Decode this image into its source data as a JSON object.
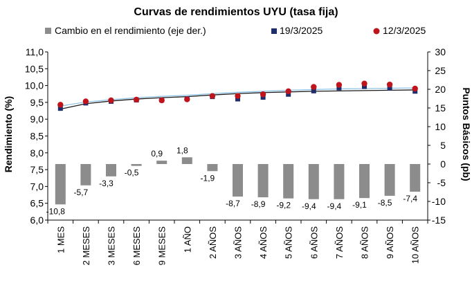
{
  "chart_data": {
    "type": "bar+line",
    "title": "Curvas de rendimientos UYU (tasa fija)",
    "categories": [
      "1 MES",
      "2 MESES",
      "3 MESES",
      "6 MESES",
      "9 MESES",
      "1 AÑO",
      "2 AÑOS",
      "3 AÑOS",
      "4 AÑOS",
      "5 AÑOS",
      "6 AÑOS",
      "7 AÑOS",
      "8 AÑOS",
      "9 AÑOS",
      "10 AÑOS"
    ],
    "y_left": {
      "label": "Rendimiento (%)",
      "range": [
        6.0,
        11.0
      ],
      "ticks": [
        "6,0",
        "6,5",
        "7,0",
        "7,5",
        "8,0",
        "8,5",
        "9,0",
        "9,5",
        "10,0",
        "10,5",
        "11,0"
      ]
    },
    "y_right": {
      "label": "Puntos Básicos (pb)",
      "range": [
        -15,
        30
      ],
      "ticks": [
        "-15",
        "-10",
        "-5",
        "0",
        "5",
        "10",
        "15",
        "20",
        "25",
        "30"
      ]
    },
    "series": [
      {
        "name": "Cambio en el rendimiento (eje der.)",
        "kind": "bar",
        "axis": "right",
        "color": "#8c8c8c",
        "values": [
          -10.8,
          -5.7,
          -3.3,
          -0.5,
          0.9,
          1.8,
          -1.9,
          -8.7,
          -8.9,
          -9.2,
          -9.4,
          -9.4,
          -9.1,
          -8.5,
          -7.4
        ],
        "labels": [
          "-10,8",
          "-5,7",
          "-3,3",
          "-0,5",
          "0,9",
          "1,8",
          "-1,9",
          "-8,7",
          "-8,9",
          "-9,2",
          "-9,4",
          "-9,4",
          "-9,1",
          "-8,5",
          "-7,4"
        ]
      },
      {
        "name": "19/3/2025",
        "kind": "scatter",
        "axis": "left",
        "color": "#1f2d6b",
        "values": [
          9.32,
          9.48,
          9.53,
          9.57,
          9.57,
          9.61,
          9.67,
          9.6,
          9.65,
          9.74,
          9.84,
          9.93,
          9.97,
          9.92,
          9.83
        ]
      },
      {
        "name": "12/3/2025",
        "kind": "scatter",
        "axis": "left",
        "color": "#c0141c",
        "values": [
          9.43,
          9.53,
          9.56,
          9.58,
          9.56,
          9.59,
          9.69,
          9.69,
          9.74,
          9.83,
          9.96,
          10.02,
          10.06,
          10.03,
          9.91
        ]
      }
    ],
    "fit_lines": [
      {
        "color": "#1a1a1a",
        "values": [
          9.3,
          9.46,
          9.54,
          9.6,
          9.64,
          9.67,
          9.72,
          9.76,
          9.79,
          9.81,
          9.83,
          9.84,
          9.85,
          9.86,
          9.87
        ]
      },
      {
        "color": "#8fc4e8",
        "values": [
          9.39,
          9.51,
          9.58,
          9.64,
          9.68,
          9.71,
          9.76,
          9.8,
          9.83,
          9.86,
          9.88,
          9.9,
          9.91,
          9.92,
          9.93
        ]
      }
    ],
    "legend_position": "top",
    "grid": false
  }
}
